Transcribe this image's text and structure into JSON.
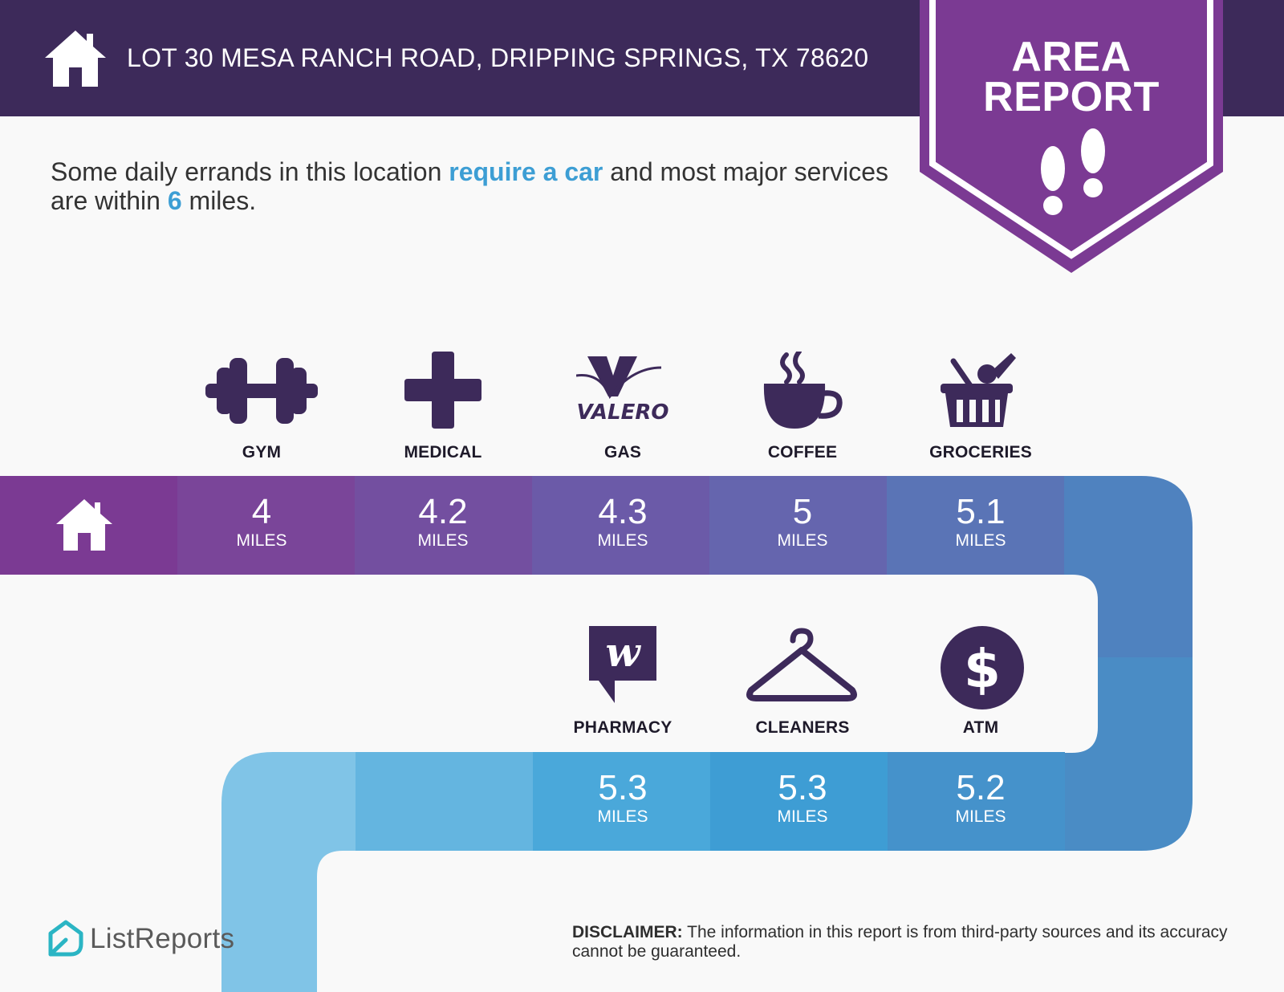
{
  "header": {
    "address": "LOT 30 MESA RANCH ROAD, DRIPPING SPRINGS, TX 78620",
    "home_icon": "home-icon"
  },
  "badge": {
    "line1": "AREA",
    "line2": "REPORT",
    "icon": "footprints-icon"
  },
  "intro": {
    "part1": "Some daily errands in this location ",
    "highlight1": "require a car",
    "part2": " and most major services are within ",
    "highlight2": "6",
    "part3": " miles."
  },
  "services_top": [
    {
      "label": "GYM",
      "distance": "4",
      "unit": "MILES",
      "icon": "dumbbell-icon"
    },
    {
      "label": "MEDICAL",
      "distance": "4.2",
      "unit": "MILES",
      "icon": "medical-cross-icon"
    },
    {
      "label": "GAS",
      "distance": "4.3",
      "unit": "MILES",
      "icon": "valero-logo-icon",
      "logo_text": "VALERO"
    },
    {
      "label": "COFFEE",
      "distance": "5",
      "unit": "MILES",
      "icon": "coffee-cup-icon"
    },
    {
      "label": "GROCERIES",
      "distance": "5.1",
      "unit": "MILES",
      "icon": "grocery-basket-icon"
    }
  ],
  "services_bottom": [
    {
      "label": "PHARMACY",
      "distance": "5.3",
      "unit": "MILES",
      "icon": "walgreens-logo-icon"
    },
    {
      "label": "CLEANERS",
      "distance": "5.3",
      "unit": "MILES",
      "icon": "hanger-icon"
    },
    {
      "label": "ATM",
      "distance": "5.2",
      "unit": "MILES",
      "icon": "dollar-coin-icon"
    }
  ],
  "brand": {
    "name": "ListReports",
    "icon": "listreports-logo-icon"
  },
  "disclaimer": {
    "label": "DISCLAIMER:",
    "text": " The information in this report is from third-party sources and its accuracy cannot be guaranteed."
  },
  "colors": {
    "header": "#3d2a5a",
    "badge": "#7b3a93",
    "accent_blue": "#3d9ed4",
    "icon_dark": "#3d2a5a"
  }
}
